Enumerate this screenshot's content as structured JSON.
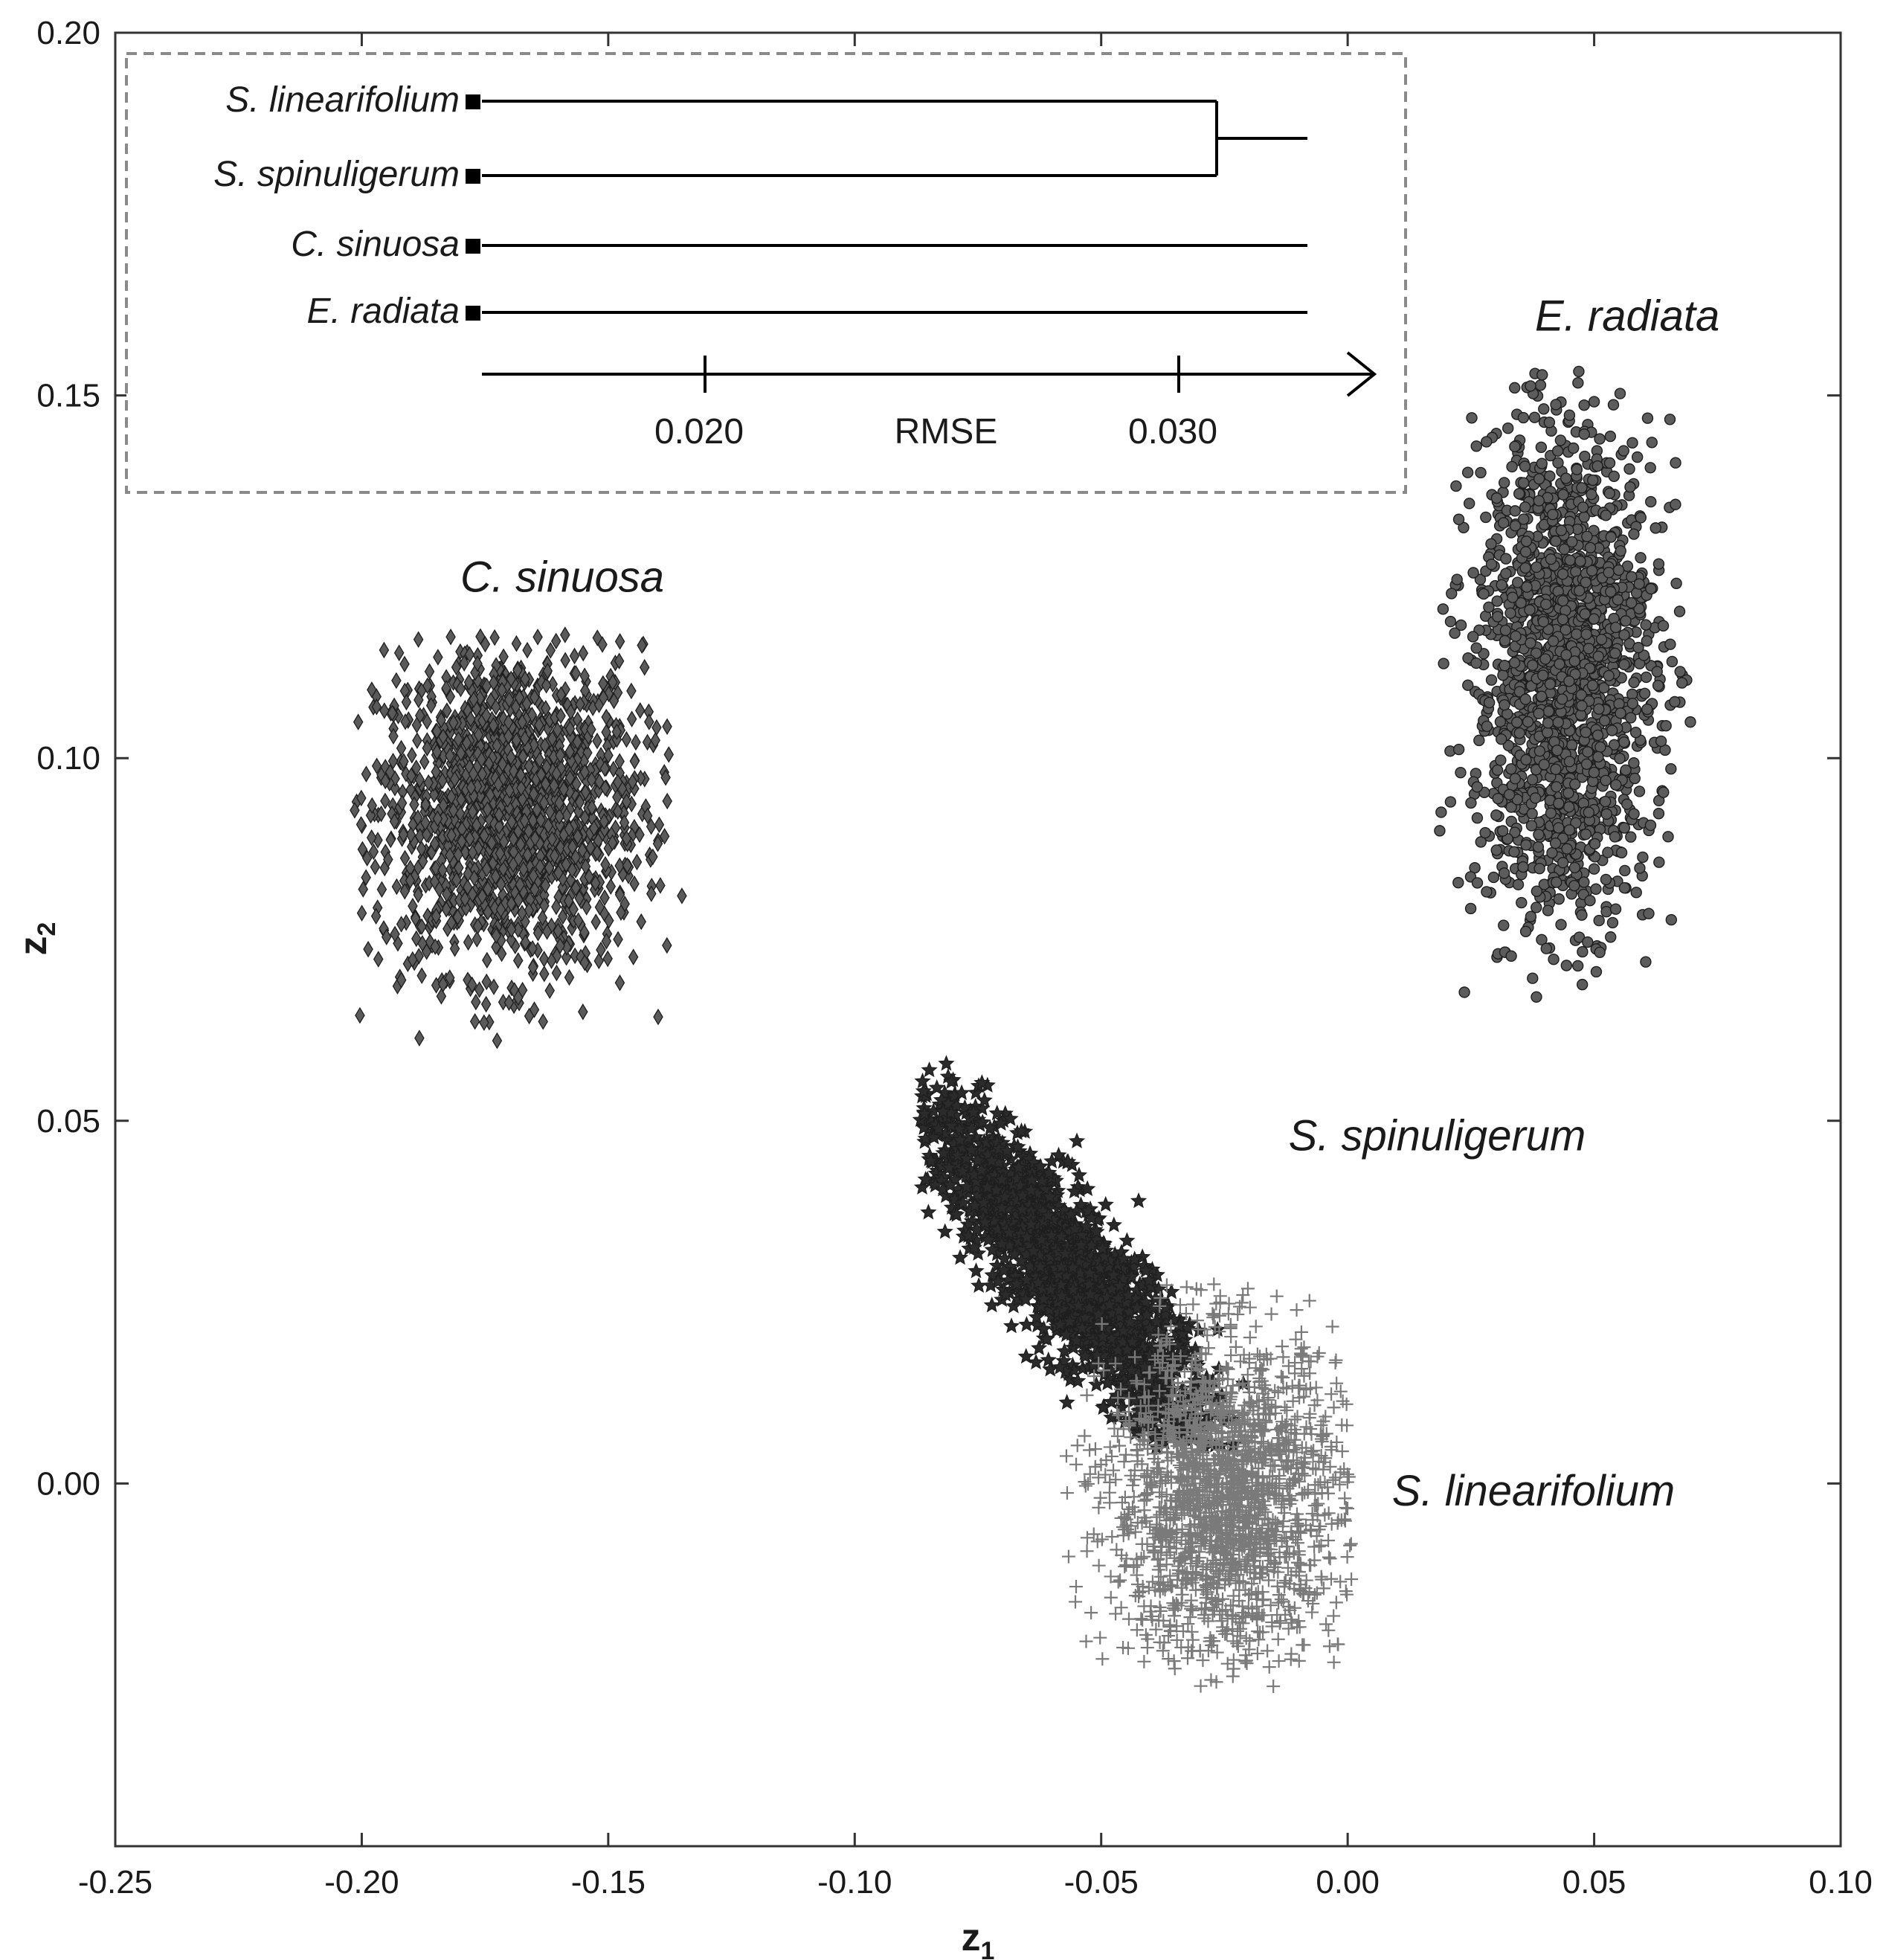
{
  "chart_data": {
    "type": "scatter",
    "title": "",
    "xlabel": "z",
    "xlabel_sub": "1",
    "ylabel": "z",
    "ylabel_sub": "2",
    "xlim": [
      -0.25,
      0.1
    ],
    "ylim": [
      -0.05,
      0.2
    ],
    "x_ticks": [
      -0.25,
      -0.2,
      -0.15,
      -0.1,
      -0.05,
      0.0,
      0.05,
      0.1
    ],
    "x_tick_labels": [
      "-0.25",
      "-0.20",
      "-0.15",
      "-0.10",
      "-0.05",
      "0.00",
      "0.05",
      "0.10"
    ],
    "y_ticks": [
      0.0,
      0.05,
      0.1,
      0.15,
      0.2
    ],
    "y_tick_labels": [
      "0.00",
      "0.05",
      "0.10",
      "0.15",
      "0.20"
    ],
    "grid": false,
    "series": [
      {
        "label": "C. sinuosa",
        "marker": "diamond",
        "color": "#5a5a5a",
        "n_points": 1800,
        "x_range": [
          -0.202,
          -0.135
        ],
        "y_range": [
          0.061,
          0.117
        ],
        "center": [
          -0.17,
          0.093
        ],
        "label_pos": [
          -0.18,
          0.125
        ]
      },
      {
        "label": "E. radiata",
        "marker": "circle",
        "color": "#5c5c5c",
        "n_points": 1800,
        "x_range": [
          0.017,
          0.072
        ],
        "y_range": [
          0.067,
          0.154
        ],
        "center": [
          0.044,
          0.112
        ],
        "label_pos": [
          0.038,
          0.161
        ]
      },
      {
        "label": "S. spinuligerum",
        "marker": "star",
        "color": "#2b2b2b",
        "n_points": 1800,
        "x_range": [
          -0.087,
          -0.02
        ],
        "y_range": [
          0.005,
          0.058
        ],
        "center": [
          -0.058,
          0.03
        ],
        "label_pos": [
          -0.012,
          0.048
        ]
      },
      {
        "label": "S. linearifolium",
        "marker": "plus",
        "color": "#7a7a7a",
        "n_points": 1800,
        "x_range": [
          -0.058,
          0.001
        ],
        "y_range": [
          -0.028,
          0.028
        ],
        "center": [
          -0.025,
          -0.002
        ],
        "label_pos": [
          0.009,
          -0.001
        ]
      }
    ],
    "inset_dendrogram": {
      "axis_label": "RMSE",
      "ticks": [
        0.02,
        0.03
      ],
      "tick_labels": [
        "0.020",
        "0.030"
      ],
      "leaves": [
        "S. linearifolium",
        "S. spinuligerum",
        "C. sinuosa",
        "E. radiata"
      ],
      "merges": [
        {
          "children": [
            "S. linearifolium",
            "S. spinuligerum"
          ],
          "height": 0.0308
        }
      ]
    }
  }
}
